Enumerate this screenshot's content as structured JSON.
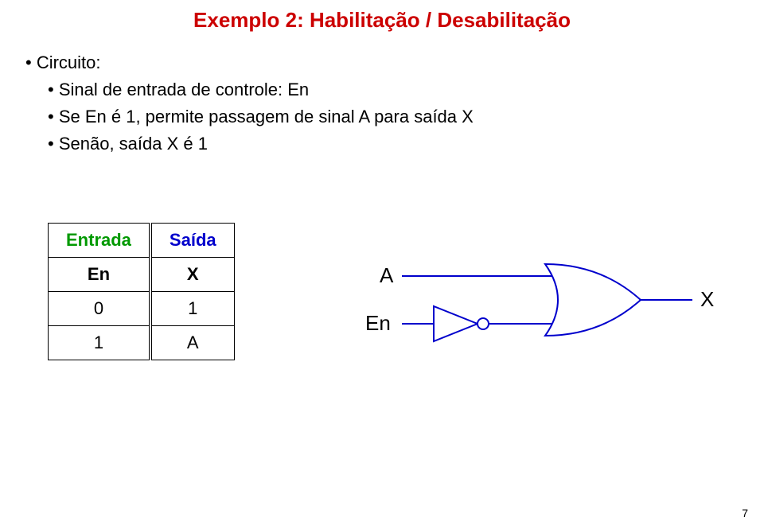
{
  "title": "Exemplo 2: Habilitação / Desabilitação",
  "bullets": {
    "circuito": "Circuito:",
    "sub1": "Sinal de entrada de controle: En",
    "sub2": "Se En é 1, permite passagem de sinal A para saída X",
    "sub3": "Senão, saída X é 1"
  },
  "table": {
    "header_entrada": "Entrada",
    "header_saida": "Saída",
    "col_en": "En",
    "col_x": "X",
    "rows": [
      {
        "en": "0",
        "x": "1"
      },
      {
        "en": "1",
        "x": "A"
      }
    ]
  },
  "circuit": {
    "label_a": "A",
    "label_en": "En",
    "label_x": "X",
    "line_color": "#0000cc",
    "line_width": 2,
    "gate_fill": "#ffffff",
    "text_color": "#000000",
    "text_fontsize": 26
  },
  "page_number": "7"
}
